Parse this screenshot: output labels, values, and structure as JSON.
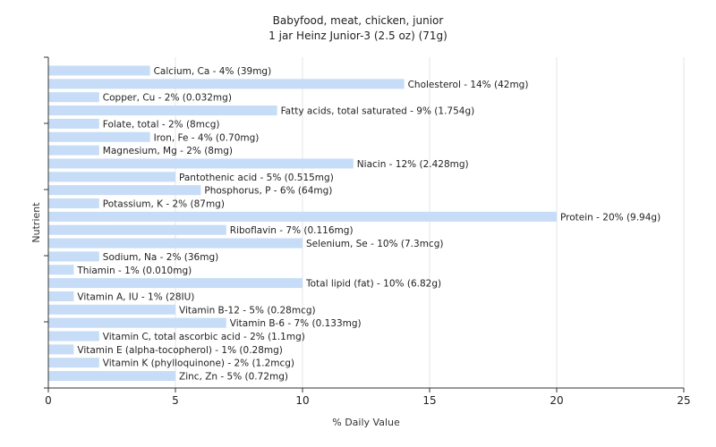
{
  "chart_data": {
    "type": "bar",
    "orientation": "horizontal",
    "title": "Babyfood, meat, chicken, junior",
    "subtitle": "1 jar Heinz Junior-3 (2.5 oz) (71g)",
    "xlabel": "% Daily Value",
    "ylabel": "Nutrient",
    "xlim": [
      0,
      25
    ],
    "xticks": [
      0,
      5,
      10,
      15,
      20,
      25
    ],
    "grid": true,
    "bar_color": "#c6dcf7",
    "categories": [
      "Calcium, Ca",
      "Cholesterol",
      "Copper, Cu",
      "Fatty acids, total saturated",
      "Folate, total",
      "Iron, Fe",
      "Magnesium, Mg",
      "Niacin",
      "Pantothenic acid",
      "Phosphorus, P",
      "Potassium, K",
      "Protein",
      "Riboflavin",
      "Selenium, Se",
      "Sodium, Na",
      "Thiamin",
      "Total lipid (fat)",
      "Vitamin A, IU",
      "Vitamin B-12",
      "Vitamin B-6",
      "Vitamin C, total ascorbic acid",
      "Vitamin E (alpha-tocopherol)",
      "Vitamin K (phylloquinone)",
      "Zinc, Zn"
    ],
    "values": [
      4,
      14,
      2,
      9,
      2,
      4,
      2,
      12,
      5,
      6,
      2,
      20,
      7,
      10,
      2,
      1,
      10,
      1,
      5,
      7,
      2,
      1,
      2,
      5
    ],
    "labels": [
      "Calcium, Ca - 4% (39mg)",
      "Cholesterol - 14% (42mg)",
      "Copper, Cu - 2% (0.032mg)",
      "Fatty acids, total saturated - 9% (1.754g)",
      "Folate, total - 2% (8mcg)",
      "Iron, Fe - 4% (0.70mg)",
      "Magnesium, Mg - 2% (8mg)",
      "Niacin - 12% (2.428mg)",
      "Pantothenic acid - 5% (0.515mg)",
      "Phosphorus, P - 6% (64mg)",
      "Potassium, K - 2% (87mg)",
      "Protein - 20% (9.94g)",
      "Riboflavin - 7% (0.116mg)",
      "Selenium, Se - 10% (7.3mcg)",
      "Sodium, Na - 2% (36mg)",
      "Thiamin - 1% (0.010mg)",
      "Total lipid (fat) - 10% (6.82g)",
      "Vitamin A, IU - 1% (28IU)",
      "Vitamin B-12 - 5% (0.28mcg)",
      "Vitamin B-6 - 7% (0.133mg)",
      "Vitamin C, total ascorbic acid - 2% (1.1mg)",
      "Vitamin E (alpha-tocopherol) - 1% (0.28mg)",
      "Vitamin K (phylloquinone) - 2% (1.2mcg)",
      "Zinc, Zn - 5% (0.72mg)"
    ]
  }
}
